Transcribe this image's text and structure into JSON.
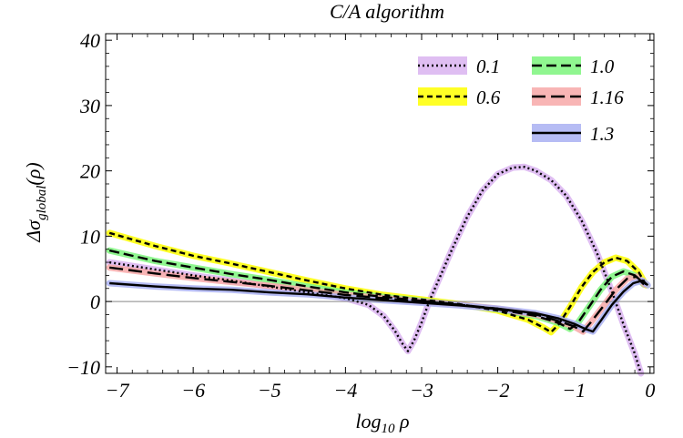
{
  "chart_data": {
    "type": "line",
    "title": "C/A algorithm",
    "xlabel": "log10 ρ",
    "xlabel_base": "log",
    "xlabel_sub": "10",
    "xlabel_var": " ρ",
    "ylabel": "Δσglobal(ρ)",
    "ylabel_pre": "Δσ",
    "ylabel_sub": "global",
    "ylabel_post": "(ρ)",
    "xlim": [
      -7.15,
      0.05
    ],
    "ylim": [
      -11,
      41
    ],
    "xticks": [
      -7,
      -6,
      -5,
      -4,
      -3,
      -2,
      -1,
      0
    ],
    "xtick_labels": [
      "−7",
      "−6",
      "−5",
      "−4",
      "−3",
      "−2",
      "−1",
      "0"
    ],
    "yticks": [
      -10,
      0,
      10,
      20,
      30,
      40
    ],
    "ytick_labels": [
      "−10",
      "0",
      "10",
      "20",
      "30",
      "40"
    ],
    "legend_position": "top-right",
    "series": [
      {
        "name": "0.1",
        "style": "dotted",
        "band_color": "#d9b3f0",
        "points": [
          [
            -7.1,
            6
          ],
          [
            -6.5,
            4.9
          ],
          [
            -6,
            4
          ],
          [
            -5.5,
            3.2
          ],
          [
            -5,
            2.3
          ],
          [
            -4.5,
            1.4
          ],
          [
            -4,
            0.5
          ],
          [
            -3.7,
            -0.5
          ],
          [
            -3.5,
            -2.2
          ],
          [
            -3.35,
            -4.5
          ],
          [
            -3.25,
            -6.5
          ],
          [
            -3.18,
            -7.6
          ],
          [
            -3.1,
            -6
          ],
          [
            -3,
            -3.2
          ],
          [
            -2.9,
            0
          ],
          [
            -2.75,
            4
          ],
          [
            -2.6,
            8
          ],
          [
            -2.4,
            13
          ],
          [
            -2.2,
            17
          ],
          [
            -2,
            19.5
          ],
          [
            -1.8,
            20.5
          ],
          [
            -1.65,
            20.6
          ],
          [
            -1.5,
            20
          ],
          [
            -1.3,
            18.6
          ],
          [
            -1.1,
            16.2
          ],
          [
            -0.9,
            12.4
          ],
          [
            -0.7,
            7.5
          ],
          [
            -0.5,
            1.5
          ],
          [
            -0.35,
            -3.5
          ],
          [
            -0.2,
            -8
          ],
          [
            -0.12,
            -11
          ]
        ]
      },
      {
        "name": "0.6",
        "style": "dashed",
        "band_color": "#ffff00",
        "points": [
          [
            -7.1,
            10.5
          ],
          [
            -6.5,
            8.5
          ],
          [
            -6,
            7
          ],
          [
            -5.5,
            5.8
          ],
          [
            -5,
            4.5
          ],
          [
            -4.5,
            3.2
          ],
          [
            -4,
            2
          ],
          [
            -3.5,
            1
          ],
          [
            -3,
            0.3
          ],
          [
            -2.5,
            -0.4
          ],
          [
            -2,
            -1.4
          ],
          [
            -1.6,
            -2.8
          ],
          [
            -1.4,
            -4
          ],
          [
            -1.3,
            -4.7
          ],
          [
            -1.2,
            -3.5
          ],
          [
            -1.05,
            -0.8
          ],
          [
            -0.9,
            2.2
          ],
          [
            -0.75,
            4.5
          ],
          [
            -0.6,
            6
          ],
          [
            -0.45,
            6.7
          ],
          [
            -0.3,
            6.2
          ],
          [
            -0.15,
            4.5
          ],
          [
            -0.05,
            2.5
          ]
        ]
      },
      {
        "name": "1.0",
        "style": "longdash",
        "band_color": "#7df57d",
        "points": [
          [
            -7.1,
            7.8
          ],
          [
            -6.5,
            6.2
          ],
          [
            -6,
            5.2
          ],
          [
            -5.5,
            4.2
          ],
          [
            -5,
            3.3
          ],
          [
            -4.5,
            2.3
          ],
          [
            -4,
            1.4
          ],
          [
            -3.5,
            0.7
          ],
          [
            -3,
            0.1
          ],
          [
            -2.5,
            -0.5
          ],
          [
            -2,
            -1.2
          ],
          [
            -1.5,
            -2.2
          ],
          [
            -1.2,
            -3.3
          ],
          [
            -1.05,
            -4.2
          ],
          [
            -0.95,
            -3.3
          ],
          [
            -0.8,
            -0.8
          ],
          [
            -0.65,
            1.8
          ],
          [
            -0.5,
            3.8
          ],
          [
            -0.35,
            4.6
          ],
          [
            -0.2,
            4
          ],
          [
            -0.08,
            2.6
          ]
        ]
      },
      {
        "name": "1.16",
        "style": "longdash2",
        "band_color": "#f7a8a8",
        "points": [
          [
            -7.1,
            5.2
          ],
          [
            -6.5,
            4.3
          ],
          [
            -6,
            3.6
          ],
          [
            -5.5,
            3
          ],
          [
            -5,
            2.4
          ],
          [
            -4.5,
            1.7
          ],
          [
            -4,
            1
          ],
          [
            -3.5,
            0.5
          ],
          [
            -3,
            0
          ],
          [
            -2.5,
            -0.5
          ],
          [
            -2,
            -1.1
          ],
          [
            -1.5,
            -2
          ],
          [
            -1.2,
            -3
          ],
          [
            -1,
            -3.8
          ],
          [
            -0.88,
            -4.6
          ],
          [
            -0.78,
            -3.2
          ],
          [
            -0.6,
            -0.5
          ],
          [
            -0.45,
            1.8
          ],
          [
            -0.3,
            3.5
          ],
          [
            -0.18,
            3.8
          ],
          [
            -0.07,
            2.6
          ]
        ]
      },
      {
        "name": "1.3",
        "style": "solid",
        "band_color": "#a9b0f2",
        "points": [
          [
            -7.1,
            2.8
          ],
          [
            -6.5,
            2.3
          ],
          [
            -6,
            2
          ],
          [
            -5.5,
            1.8
          ],
          [
            -5,
            1.4
          ],
          [
            -4.5,
            1.1
          ],
          [
            -4,
            0.6
          ],
          [
            -3.5,
            0.2
          ],
          [
            -3,
            -0.2
          ],
          [
            -2.5,
            -0.6
          ],
          [
            -2,
            -1.1
          ],
          [
            -1.5,
            -1.8
          ],
          [
            -1.2,
            -2.6
          ],
          [
            -1,
            -3.4
          ],
          [
            -0.85,
            -4.2
          ],
          [
            -0.75,
            -4.6
          ],
          [
            -0.65,
            -3
          ],
          [
            -0.5,
            -0.5
          ],
          [
            -0.35,
            1.5
          ],
          [
            -0.22,
            2.8
          ],
          [
            -0.1,
            3.2
          ],
          [
            -0.03,
            2.5
          ]
        ]
      }
    ]
  }
}
